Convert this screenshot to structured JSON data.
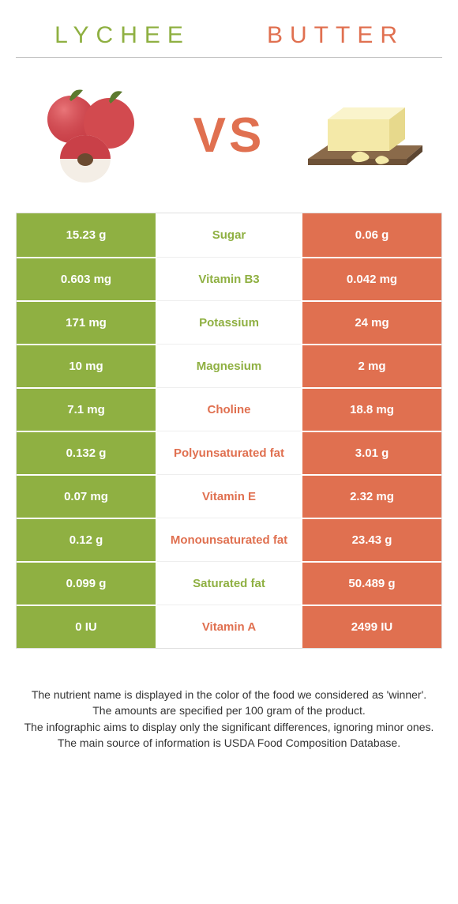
{
  "colors": {
    "left": "#8fb042",
    "right": "#e07050",
    "left_cell": "#8fb042",
    "right_cell": "#e07050"
  },
  "foods": {
    "left": {
      "name": "Lychee"
    },
    "right": {
      "name": "Butter"
    }
  },
  "vs_text": "VS",
  "rows": [
    {
      "label": "Sugar",
      "left": "15.23 g",
      "right": "0.06 g",
      "winner": "left"
    },
    {
      "label": "Vitamin B3",
      "left": "0.603 mg",
      "right": "0.042 mg",
      "winner": "left"
    },
    {
      "label": "Potassium",
      "left": "171 mg",
      "right": "24 mg",
      "winner": "left"
    },
    {
      "label": "Magnesium",
      "left": "10 mg",
      "right": "2 mg",
      "winner": "left"
    },
    {
      "label": "Choline",
      "left": "7.1 mg",
      "right": "18.8 mg",
      "winner": "right"
    },
    {
      "label": "Polyunsaturated fat",
      "left": "0.132 g",
      "right": "3.01 g",
      "winner": "right"
    },
    {
      "label": "Vitamin E",
      "left": "0.07 mg",
      "right": "2.32 mg",
      "winner": "right"
    },
    {
      "label": "Monounsaturated fat",
      "left": "0.12 g",
      "right": "23.43 g",
      "winner": "right"
    },
    {
      "label": "Saturated fat",
      "left": "0.099 g",
      "right": "50.489 g",
      "winner": "left"
    },
    {
      "label": "Vitamin A",
      "left": "0 IU",
      "right": "2499 IU",
      "winner": "right"
    }
  ],
  "footnotes": [
    "The nutrient name is displayed in the color of the food we considered as 'winner'.",
    "The amounts are specified per 100 gram of the product.",
    "The infographic aims to display only the significant differences, ignoring minor ones.",
    "The main source of information is USDA Food Composition Database."
  ]
}
